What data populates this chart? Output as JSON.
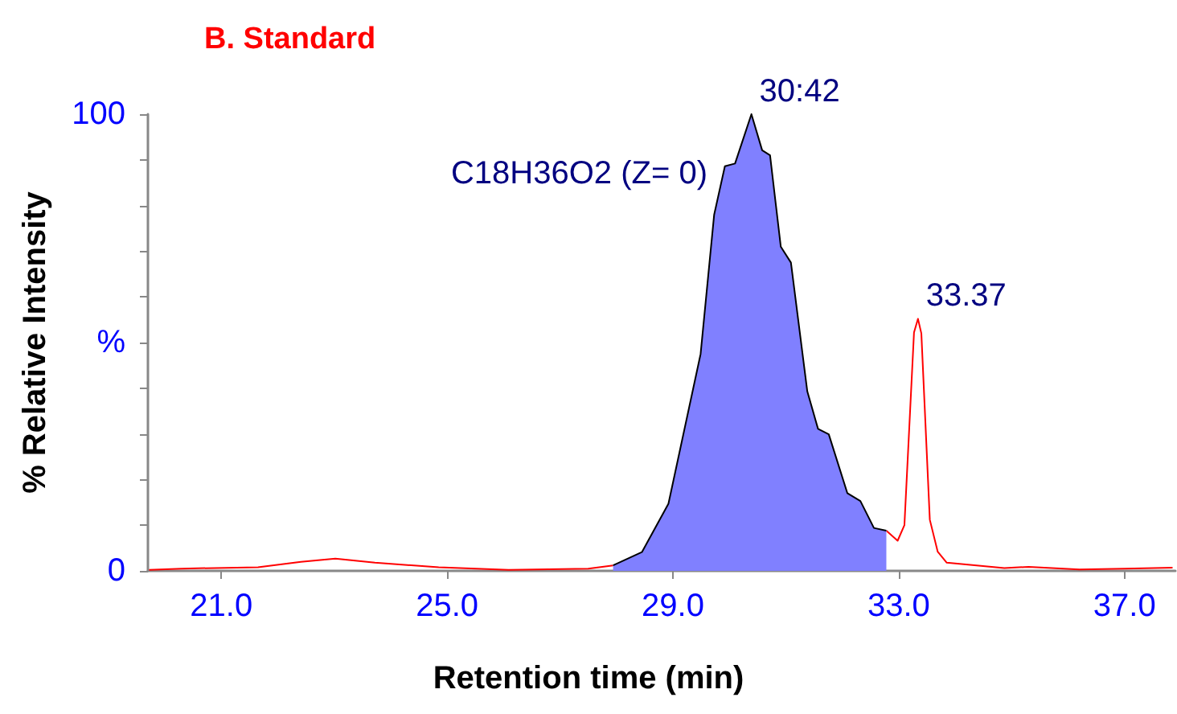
{
  "chart_data": {
    "type": "line",
    "title": "B. Standard",
    "xlabel": "Retention time (min)",
    "ylabel": "% Relative Intensity",
    "xlim": [
      19.7,
      37.9
    ],
    "ylim": [
      0,
      100
    ],
    "xticks": [
      {
        "value": 21,
        "label": "21.0"
      },
      {
        "value": 25,
        "label": "25.0"
      },
      {
        "value": 29,
        "label": "29.0"
      },
      {
        "value": 33,
        "label": "33.0"
      },
      {
        "value": 37,
        "label": "37.0"
      }
    ],
    "yticks": [
      0,
      {
        "value": 10,
        "label": null
      },
      {
        "value": 20,
        "label": null
      },
      {
        "value": 30,
        "label": null
      },
      {
        "value": 40,
        "label": null
      },
      {
        "value": 50,
        "label": "%"
      },
      {
        "value": 60,
        "label": null
      },
      {
        "value": 70,
        "label": null
      },
      {
        "value": 80,
        "label": null
      },
      {
        "value": 90,
        "label": null
      },
      100
    ],
    "marker": "none",
    "line_style": "solid",
    "series": [
      {
        "color": "#ff0000",
        "x": [
          19.72,
          20.3,
          21.65,
          22.41,
          23.02,
          23.72,
          24.85,
          26.09,
          27.5,
          27.94,
          28.45,
          28.92,
          29.49,
          29.73,
          29.92,
          30.1,
          30.39,
          30.58,
          30.72,
          30.91,
          31.09,
          31.38,
          31.57,
          31.76,
          32.09,
          32.32,
          32.56,
          32.78,
          32.98,
          33.1,
          33.27,
          33.34,
          33.4,
          33.55,
          33.69,
          33.85,
          34.87,
          35.3,
          36.2,
          37.0,
          37.85
        ],
        "values": [
          0.2,
          0.5,
          0.8,
          2,
          2.7,
          1.8,
          0.8,
          0.2,
          0.5,
          1.2,
          null,
          null,
          null,
          null,
          null,
          null,
          null,
          null,
          null,
          null,
          null,
          null,
          null,
          null,
          null,
          null,
          null,
          8.8,
          6.6,
          10,
          52.2,
          55.2,
          52,
          11.2,
          4.2,
          1.8,
          0.6,
          0.9,
          0.3,
          0.5,
          0.7
        ]
      },
      {
        "type": "area",
        "color": "#8080ff",
        "x": [
          27.94,
          28.45,
          28.92,
          29.49,
          29.73,
          29.92,
          30.1,
          30.39,
          30.58,
          30.72,
          30.91,
          31.09,
          31.38,
          31.57,
          31.76,
          32.09,
          32.32,
          32.56,
          32.78
        ],
        "values": [
          1.2,
          4.1,
          14.7,
          47.5,
          78,
          88.6,
          89.2,
          100,
          92.1,
          91,
          71,
          67.5,
          39.3,
          31.1,
          29.9,
          17,
          15.3,
          9.4,
          8.8
        ]
      }
    ],
    "annotations": [
      "C18H36O2 (Z= 0)",
      {
        "text": "30:42",
        "x": 30.39,
        "y": 100
      },
      {
        "text": "33.37",
        "x": 33.34,
        "y": 55.2
      }
    ]
  }
}
